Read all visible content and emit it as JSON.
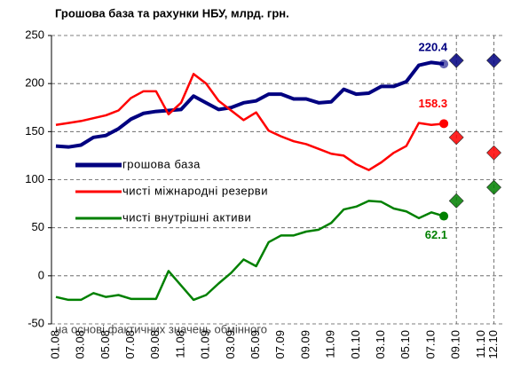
{
  "chart_data": {
    "type": "line",
    "title": "Грошова база та рахунки НБУ, млрд. грн.",
    "note": "на основі фактичних значень обмінного",
    "categories": [
      "01.08",
      null,
      "03.08",
      null,
      "05.08",
      null,
      "07.08",
      null,
      "09.08",
      null,
      "11.08",
      null,
      "01.09",
      null,
      "03.09",
      null,
      "05.09",
      null,
      "07.09",
      null,
      "09.09",
      null,
      "11.09",
      null,
      "01.10",
      null,
      "03.10",
      null,
      "05.10",
      null,
      "07.10",
      null,
      "09.10",
      null,
      "11.10",
      "12.10"
    ],
    "ylim": [
      -50,
      250
    ],
    "yticks": [
      -50,
      0,
      50,
      100,
      150,
      200,
      250
    ],
    "grid": true,
    "series": [
      {
        "name": "грошова база",
        "color": "#000080",
        "values": [
          135,
          134,
          136,
          144,
          146,
          153,
          163,
          169,
          171,
          172,
          173,
          187,
          180,
          173,
          175,
          180,
          182,
          189,
          189,
          184,
          184,
          180,
          181,
          194,
          189,
          190,
          197,
          197,
          202,
          219,
          222,
          220.4,
          null,
          null,
          null,
          null
        ],
        "forecast": [
          null,
          null,
          null,
          null,
          null,
          null,
          null,
          null,
          null,
          null,
          null,
          null,
          null,
          null,
          null,
          null,
          null,
          null,
          null,
          null,
          null,
          null,
          null,
          null,
          null,
          null,
          null,
          null,
          null,
          null,
          null,
          null,
          224,
          null,
          null,
          224
        ]
      },
      {
        "name": "чисті міжнародні резерви",
        "color": "#ff0000",
        "values": [
          157,
          159,
          161,
          164,
          167,
          172,
          185,
          192,
          192,
          168,
          180,
          210,
          200,
          182,
          172,
          162,
          170,
          151,
          145,
          140,
          137,
          132,
          127,
          125,
          116,
          110,
          118,
          128,
          135,
          159,
          157,
          158.3,
          null,
          null,
          null,
          null
        ],
        "forecast": [
          null,
          null,
          null,
          null,
          null,
          null,
          null,
          null,
          null,
          null,
          null,
          null,
          null,
          null,
          null,
          null,
          null,
          null,
          null,
          null,
          null,
          null,
          null,
          null,
          null,
          null,
          null,
          null,
          null,
          null,
          null,
          null,
          144,
          null,
          null,
          128
        ]
      },
      {
        "name": "чисті внутрішні активи",
        "color": "#008000",
        "values": [
          -22,
          -25,
          -25,
          -18,
          -22,
          -20,
          -24,
          -24,
          -24,
          5,
          -10,
          -25,
          -20,
          -8,
          3,
          17,
          10,
          35,
          42,
          42,
          46,
          48,
          55,
          69,
          72,
          78,
          77,
          70,
          67,
          60,
          66,
          62.1,
          null,
          null,
          null,
          null
        ],
        "forecast": [
          null,
          null,
          null,
          null,
          null,
          null,
          null,
          null,
          null,
          null,
          null,
          null,
          null,
          null,
          null,
          null,
          null,
          null,
          null,
          null,
          null,
          null,
          null,
          null,
          null,
          null,
          null,
          null,
          null,
          null,
          null,
          null,
          78,
          null,
          null,
          92
        ]
      }
    ]
  }
}
